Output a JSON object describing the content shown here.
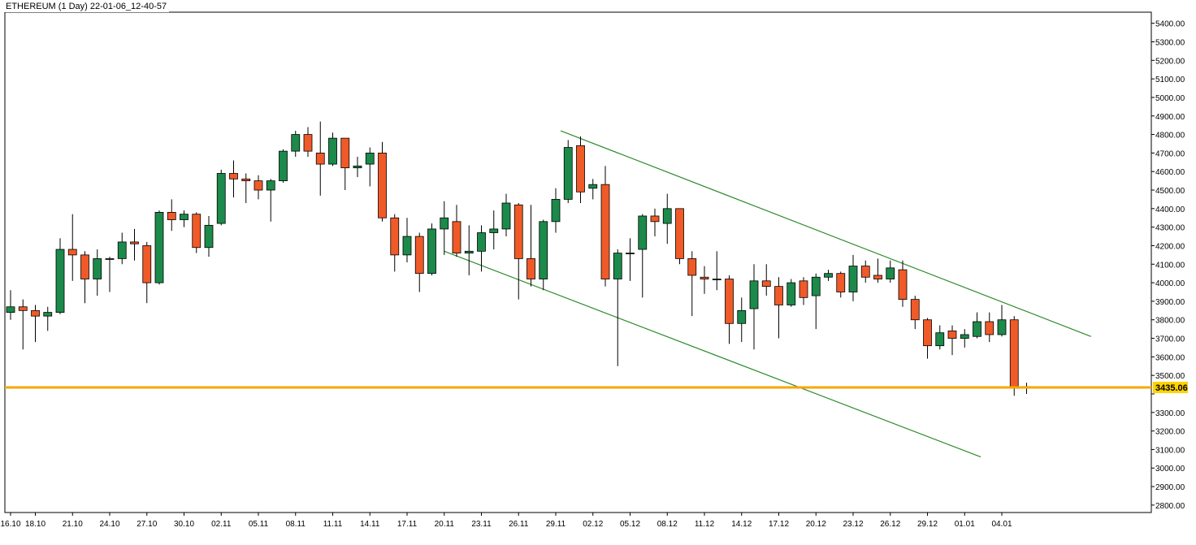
{
  "chart_data": {
    "type": "candlestick",
    "title": "ETHEREUM (1 Day) 22-01-06_12-40-57",
    "y_ticks": [
      5400,
      5300,
      5200,
      5100,
      5000,
      4900,
      4800,
      4700,
      4600,
      4500,
      4400,
      4300,
      4200,
      4100,
      4000,
      3900,
      3800,
      3700,
      3600,
      3500,
      3400,
      3300,
      3200,
      3100,
      3000,
      2900,
      2800
    ],
    "y_tick_labels": [
      "5400.00",
      "5300.00",
      "5200.00",
      "5100.00",
      "5000.00",
      "4900.00",
      "4800.00",
      "4700.00",
      "4600.00",
      "4500.00",
      "4400.00",
      "4300.00",
      "4200.00",
      "4100.00",
      "4000.00",
      "3900.00",
      "3800.00",
      "3700.00",
      "3600.00",
      "3500.00",
      "3400.00",
      "3300.00",
      "3200.00",
      "3100.00",
      "3000.00",
      "2900.00",
      "2800.00"
    ],
    "ylim": [
      2760,
      5460
    ],
    "x_tick_labels": [
      {
        "label": "16.10",
        "index": 0
      },
      {
        "label": "18.10",
        "index": 2
      },
      {
        "label": "21.10",
        "index": 5
      },
      {
        "label": "24.10",
        "index": 8
      },
      {
        "label": "27.10",
        "index": 11
      },
      {
        "label": "30.10",
        "index": 14
      },
      {
        "label": "02.11",
        "index": 17
      },
      {
        "label": "05.11",
        "index": 20
      },
      {
        "label": "08.11",
        "index": 23
      },
      {
        "label": "11.11",
        "index": 26
      },
      {
        "label": "14.11",
        "index": 29
      },
      {
        "label": "17.11",
        "index": 32
      },
      {
        "label": "20.11",
        "index": 35
      },
      {
        "label": "23.11",
        "index": 38
      },
      {
        "label": "26.11",
        "index": 41
      },
      {
        "label": "29.11",
        "index": 44
      },
      {
        "label": "02.12",
        "index": 47
      },
      {
        "label": "05.12",
        "index": 50
      },
      {
        "label": "08.12",
        "index": 53
      },
      {
        "label": "11.12",
        "index": 56
      },
      {
        "label": "14.12",
        "index": 59
      },
      {
        "label": "17.12",
        "index": 62
      },
      {
        "label": "20.12",
        "index": 65
      },
      {
        "label": "23.12",
        "index": 68
      },
      {
        "label": "26.12",
        "index": 71
      },
      {
        "label": "29.12",
        "index": 74
      },
      {
        "label": "01.01",
        "index": 77
      },
      {
        "label": "04.01",
        "index": 80
      }
    ],
    "candles": [
      {
        "o": 3840,
        "h": 3960,
        "l": 3800,
        "c": 3870
      },
      {
        "o": 3870,
        "h": 3910,
        "l": 3640,
        "c": 3850
      },
      {
        "o": 3850,
        "h": 3880,
        "l": 3680,
        "c": 3820
      },
      {
        "o": 3820,
        "h": 3870,
        "l": 3740,
        "c": 3840
      },
      {
        "o": 3840,
        "h": 4240,
        "l": 3830,
        "c": 4180
      },
      {
        "o": 4180,
        "h": 4370,
        "l": 4010,
        "c": 4150
      },
      {
        "o": 4150,
        "h": 4170,
        "l": 3890,
        "c": 4020
      },
      {
        "o": 4020,
        "h": 4180,
        "l": 3930,
        "c": 4130
      },
      {
        "o": 4130,
        "h": 4140,
        "l": 3950,
        "c": 4130
      },
      {
        "o": 4130,
        "h": 4270,
        "l": 4100,
        "c": 4220
      },
      {
        "o": 4220,
        "h": 4290,
        "l": 4120,
        "c": 4210
      },
      {
        "o": 4200,
        "h": 4220,
        "l": 3890,
        "c": 4000
      },
      {
        "o": 4000,
        "h": 4390,
        "l": 3990,
        "c": 4380
      },
      {
        "o": 4380,
        "h": 4450,
        "l": 4280,
        "c": 4340
      },
      {
        "o": 4340,
        "h": 4390,
        "l": 4300,
        "c": 4370
      },
      {
        "o": 4370,
        "h": 4380,
        "l": 4160,
        "c": 4190
      },
      {
        "o": 4190,
        "h": 4360,
        "l": 4140,
        "c": 4310
      },
      {
        "o": 4320,
        "h": 4610,
        "l": 4310,
        "c": 4590
      },
      {
        "o": 4590,
        "h": 4660,
        "l": 4460,
        "c": 4560
      },
      {
        "o": 4560,
        "h": 4590,
        "l": 4430,
        "c": 4550
      },
      {
        "o": 4550,
        "h": 4580,
        "l": 4450,
        "c": 4500
      },
      {
        "o": 4500,
        "h": 4560,
        "l": 4330,
        "c": 4550
      },
      {
        "o": 4550,
        "h": 4720,
        "l": 4540,
        "c": 4710
      },
      {
        "o": 4710,
        "h": 4820,
        "l": 4680,
        "c": 4800
      },
      {
        "o": 4800,
        "h": 4840,
        "l": 4680,
        "c": 4710
      },
      {
        "o": 4700,
        "h": 4870,
        "l": 4470,
        "c": 4640
      },
      {
        "o": 4640,
        "h": 4810,
        "l": 4630,
        "c": 4780
      },
      {
        "o": 4780,
        "h": 4780,
        "l": 4500,
        "c": 4620
      },
      {
        "o": 4620,
        "h": 4680,
        "l": 4570,
        "c": 4630
      },
      {
        "o": 4640,
        "h": 4730,
        "l": 4520,
        "c": 4700
      },
      {
        "o": 4700,
        "h": 4760,
        "l": 4330,
        "c": 4350
      },
      {
        "o": 4350,
        "h": 4370,
        "l": 4060,
        "c": 4150
      },
      {
        "o": 4150,
        "h": 4350,
        "l": 4110,
        "c": 4250
      },
      {
        "o": 4250,
        "h": 4270,
        "l": 3950,
        "c": 4050
      },
      {
        "o": 4050,
        "h": 4320,
        "l": 4040,
        "c": 4290
      },
      {
        "o": 4290,
        "h": 4440,
        "l": 4150,
        "c": 4350
      },
      {
        "o": 4330,
        "h": 4420,
        "l": 4140,
        "c": 4160
      },
      {
        "o": 4160,
        "h": 4310,
        "l": 4040,
        "c": 4170
      },
      {
        "o": 4170,
        "h": 4310,
        "l": 4060,
        "c": 4270
      },
      {
        "o": 4270,
        "h": 4390,
        "l": 4180,
        "c": 4290
      },
      {
        "o": 4290,
        "h": 4480,
        "l": 4250,
        "c": 4430
      },
      {
        "o": 4420,
        "h": 4430,
        "l": 3910,
        "c": 4130
      },
      {
        "o": 4130,
        "h": 4420,
        "l": 3980,
        "c": 4020
      },
      {
        "o": 4020,
        "h": 4340,
        "l": 3960,
        "c": 4330
      },
      {
        "o": 4330,
        "h": 4510,
        "l": 4270,
        "c": 4450
      },
      {
        "o": 4450,
        "h": 4770,
        "l": 4430,
        "c": 4730
      },
      {
        "o": 4740,
        "h": 4790,
        "l": 4430,
        "c": 4490
      },
      {
        "o": 4510,
        "h": 4560,
        "l": 4450,
        "c": 4530
      },
      {
        "o": 4530,
        "h": 4630,
        "l": 3980,
        "c": 4020
      },
      {
        "o": 4020,
        "h": 4180,
        "l": 3550,
        "c": 4160
      },
      {
        "o": 4160,
        "h": 4240,
        "l": 4010,
        "c": 4160
      },
      {
        "o": 4180,
        "h": 4370,
        "l": 3920,
        "c": 4360
      },
      {
        "o": 4360,
        "h": 4400,
        "l": 4250,
        "c": 4330
      },
      {
        "o": 4320,
        "h": 4480,
        "l": 4210,
        "c": 4400
      },
      {
        "o": 4400,
        "h": 4400,
        "l": 4100,
        "c": 4130
      },
      {
        "o": 4130,
        "h": 4170,
        "l": 3820,
        "c": 4040
      },
      {
        "o": 4030,
        "h": 4090,
        "l": 3940,
        "c": 4020
      },
      {
        "o": 4020,
        "h": 4170,
        "l": 3960,
        "c": 4020
      },
      {
        "o": 4020,
        "h": 4040,
        "l": 3670,
        "c": 3780
      },
      {
        "o": 3780,
        "h": 3920,
        "l": 3680,
        "c": 3850
      },
      {
        "o": 3860,
        "h": 4100,
        "l": 3640,
        "c": 4010
      },
      {
        "o": 4010,
        "h": 4100,
        "l": 3930,
        "c": 3980
      },
      {
        "o": 3980,
        "h": 4030,
        "l": 3700,
        "c": 3880
      },
      {
        "o": 3880,
        "h": 4020,
        "l": 3870,
        "c": 4000
      },
      {
        "o": 4010,
        "h": 4030,
        "l": 3880,
        "c": 3920
      },
      {
        "o": 3930,
        "h": 4050,
        "l": 3750,
        "c": 4030
      },
      {
        "o": 4030,
        "h": 4070,
        "l": 4010,
        "c": 4050
      },
      {
        "o": 4050,
        "h": 4060,
        "l": 3920,
        "c": 3950
      },
      {
        "o": 3950,
        "h": 4150,
        "l": 3900,
        "c": 4090
      },
      {
        "o": 4090,
        "h": 4120,
        "l": 4000,
        "c": 4030
      },
      {
        "o": 4040,
        "h": 4130,
        "l": 4000,
        "c": 4020
      },
      {
        "o": 4020,
        "h": 4120,
        "l": 4000,
        "c": 4080
      },
      {
        "o": 4070,
        "h": 4120,
        "l": 3870,
        "c": 3910
      },
      {
        "o": 3910,
        "h": 3930,
        "l": 3750,
        "c": 3800
      },
      {
        "o": 3800,
        "h": 3810,
        "l": 3590,
        "c": 3660
      },
      {
        "o": 3660,
        "h": 3770,
        "l": 3640,
        "c": 3730
      },
      {
        "o": 3740,
        "h": 3770,
        "l": 3610,
        "c": 3700
      },
      {
        "o": 3700,
        "h": 3750,
        "l": 3650,
        "c": 3720
      },
      {
        "o": 3710,
        "h": 3840,
        "l": 3700,
        "c": 3790
      },
      {
        "o": 3790,
        "h": 3840,
        "l": 3680,
        "c": 3720
      },
      {
        "o": 3720,
        "h": 3880,
        "l": 3710,
        "c": 3800
      },
      {
        "o": 3800,
        "h": 3820,
        "l": 3390,
        "c": 3430
      },
      {
        "o": 3440,
        "h": 3460,
        "l": 3400,
        "c": 3435
      }
    ],
    "trendlines": [
      {
        "x1": 44.4,
        "y1": 4820,
        "x2": 87.2,
        "y2": 3710
      },
      {
        "x1": 35.0,
        "y1": 4170,
        "x2": 78.3,
        "y2": 3060
      }
    ],
    "price_line": {
      "value": 3435.06,
      "label": "3435.06"
    },
    "colors": {
      "up": "#1b8a4a",
      "down": "#f05a28",
      "wick": "#000000",
      "trend": "#2e8b2e",
      "price_line": "#f5a800",
      "price_label_bg": "#ffd200"
    }
  }
}
